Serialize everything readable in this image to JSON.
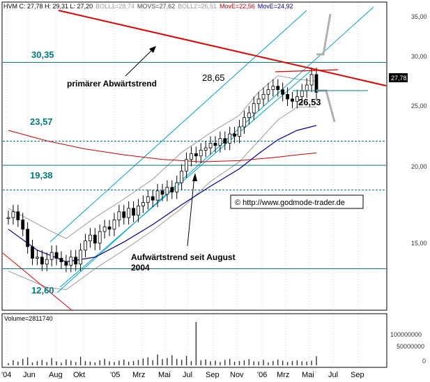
{
  "header": {
    "ohlc": "HVM C: 27,78 H: 29,31 L: 27,20",
    "boll1": "BOLL1=28,74",
    "movs": "MOVS=27,62",
    "boll2": "BOLL2=26,51",
    "move_red": "MovE=22,56",
    "move_blue": "MovE=24,92"
  },
  "colors": {
    "price": "#000000",
    "boll": "#9a9a9a",
    "ma_red": "#cc0000",
    "ma_blue": "#000099",
    "trend_red": "#e00000",
    "channel": "#00a0c8",
    "level": "#007b7b",
    "volume": "#333333"
  },
  "chart_data": [
    {
      "type": "line",
      "x_ticks": [
        "'04",
        "Jun",
        "Aug",
        "Okt",
        "'05",
        "Mrz",
        "Mai",
        "Jul",
        "Sep",
        "Nov",
        "'06",
        "Mrz",
        "Mai",
        "Jul",
        "Sep"
      ],
      "y_ticks": [
        "35,00",
        "30,00",
        "25,00",
        "20,00",
        "15,00"
      ],
      "last_price_label": "27,78",
      "level_labels": [
        "30,35",
        "23,57",
        "19,38",
        "12,60"
      ],
      "levels": [
        30.35,
        23.57,
        21.5,
        19.38,
        12.6
      ],
      "annotations": {
        "primary_downtrend": "primärer Abwärtstrend",
        "uptrend_line1": "Aufwärtstrend seit August",
        "uptrend_line2": "2004",
        "high_value": "28,65",
        "low_value": "26,53",
        "copyright": "© http://www.godmode-trader.de"
      },
      "series": [
        {
          "values": [
            [
              0,
              17.0
            ],
            [
              1,
              17.5
            ],
            [
              2,
              16.8
            ],
            [
              3,
              16.0
            ],
            [
              4,
              14.5
            ],
            [
              5,
              13.5
            ],
            [
              6,
              13.6
            ],
            [
              7,
              13.0
            ],
            [
              8,
              13.4
            ],
            [
              9,
              14.0
            ],
            [
              10,
              13.5
            ],
            [
              11,
              13.2
            ],
            [
              12,
              12.9
            ],
            [
              13,
              13.6
            ],
            [
              14,
              13.0
            ],
            [
              15,
              14.2
            ],
            [
              16,
              15.0
            ],
            [
              17,
              15.5
            ],
            [
              18,
              14.8
            ],
            [
              19,
              15.8
            ],
            [
              20,
              16.2
            ],
            [
              21,
              16.0
            ],
            [
              22,
              16.8
            ],
            [
              23,
              17.5
            ],
            [
              24,
              17.0
            ],
            [
              25,
              17.8
            ],
            [
              26,
              17.2
            ],
            [
              27,
              18.0
            ],
            [
              28,
              18.3
            ],
            [
              29,
              18.8
            ],
            [
              30,
              18.5
            ],
            [
              31,
              19.3
            ],
            [
              32,
              19.0
            ],
            [
              33,
              19.6
            ],
            [
              34,
              19.2
            ],
            [
              35,
              20.0
            ],
            [
              36,
              21.0
            ],
            [
              37,
              22.0
            ],
            [
              38,
              22.5
            ],
            [
              39,
              22.3
            ],
            [
              40,
              22.8
            ],
            [
              41,
              23.0
            ],
            [
              42,
              23.4
            ],
            [
              43,
              23.2
            ],
            [
              44,
              23.8
            ],
            [
              45,
              23.4
            ],
            [
              46,
              24.2
            ],
            [
              47,
              24.0
            ],
            [
              48,
              24.8
            ],
            [
              49,
              25.6
            ],
            [
              50,
              26.0
            ],
            [
              51,
              26.8
            ],
            [
              52,
              27.2
            ],
            [
              53,
              27.6
            ],
            [
              54,
              28.0
            ],
            [
              55,
              28.3
            ],
            [
              56,
              28.0
            ],
            [
              57,
              27.6
            ],
            [
              58,
              27.2
            ],
            [
              59,
              27.0
            ],
            [
              60,
              27.4
            ],
            [
              61,
              27.9
            ],
            [
              62,
              28.4
            ],
            [
              63,
              29.3
            ],
            [
              64,
              27.78
            ]
          ]
        },
        {
          "values": [
            [
              0,
              16.0
            ],
            [
              6,
              14.2
            ],
            [
              12,
              13.2
            ],
            [
              18,
              13.6
            ],
            [
              24,
              14.9
            ],
            [
              30,
              16.4
            ],
            [
              36,
              18.1
            ],
            [
              42,
              19.7
            ],
            [
              48,
              21.2
            ],
            [
              52,
              22.5
            ],
            [
              56,
              23.7
            ],
            [
              60,
              24.5
            ],
            [
              64,
              24.92
            ]
          ]
        },
        {
          "values": [
            [
              0,
              24.5
            ],
            [
              8,
              23.6
            ],
            [
              16,
              22.9
            ],
            [
              24,
              22.4
            ],
            [
              32,
              22.0
            ],
            [
              40,
              21.8
            ],
            [
              48,
              21.9
            ],
            [
              56,
              22.2
            ],
            [
              60,
              22.4
            ],
            [
              64,
              22.56
            ]
          ]
        },
        {
          "values": [
            [
              0,
              17.8
            ],
            [
              8,
              16.0
            ],
            [
              12,
              15.2
            ],
            [
              18,
              17.0
            ],
            [
              24,
              18.6
            ],
            [
              30,
              20.3
            ],
            [
              36,
              22.6
            ],
            [
              42,
              24.3
            ],
            [
              48,
              25.8
            ],
            [
              52,
              27.8
            ],
            [
              56,
              29.2
            ],
            [
              60,
              28.9
            ],
            [
              64,
              28.74
            ]
          ]
        },
        {
          "values": [
            [
              0,
              12.4
            ],
            [
              8,
              11.0
            ],
            [
              12,
              10.8
            ],
            [
              18,
              12.6
            ],
            [
              24,
              14.2
            ],
            [
              30,
              15.9
            ],
            [
              36,
              17.8
            ],
            [
              42,
              20.1
            ],
            [
              48,
              21.8
            ],
            [
              52,
              23.6
            ],
            [
              56,
              25.4
            ],
            [
              60,
              26.5
            ],
            [
              64,
              26.51
            ]
          ]
        }
      ]
    },
    {
      "type": "bar",
      "label": "Volume=2811740",
      "y_ticks": [
        "100000000",
        "50000000",
        "0"
      ],
      "values": [
        6,
        14,
        10,
        18,
        22,
        8,
        12,
        15,
        9,
        20,
        11,
        7,
        16,
        13,
        9,
        24,
        12,
        10,
        8,
        14,
        18,
        11,
        9,
        13,
        16,
        10,
        12,
        15,
        19,
        22,
        14,
        30,
        17,
        20,
        28,
        18,
        15,
        26,
        12,
        135,
        14,
        16,
        11,
        13,
        9,
        15,
        18,
        10,
        12,
        14,
        17,
        11,
        10,
        15,
        8,
        12,
        16,
        13,
        9,
        12,
        14,
        11,
        10,
        13,
        25
      ]
    }
  ]
}
